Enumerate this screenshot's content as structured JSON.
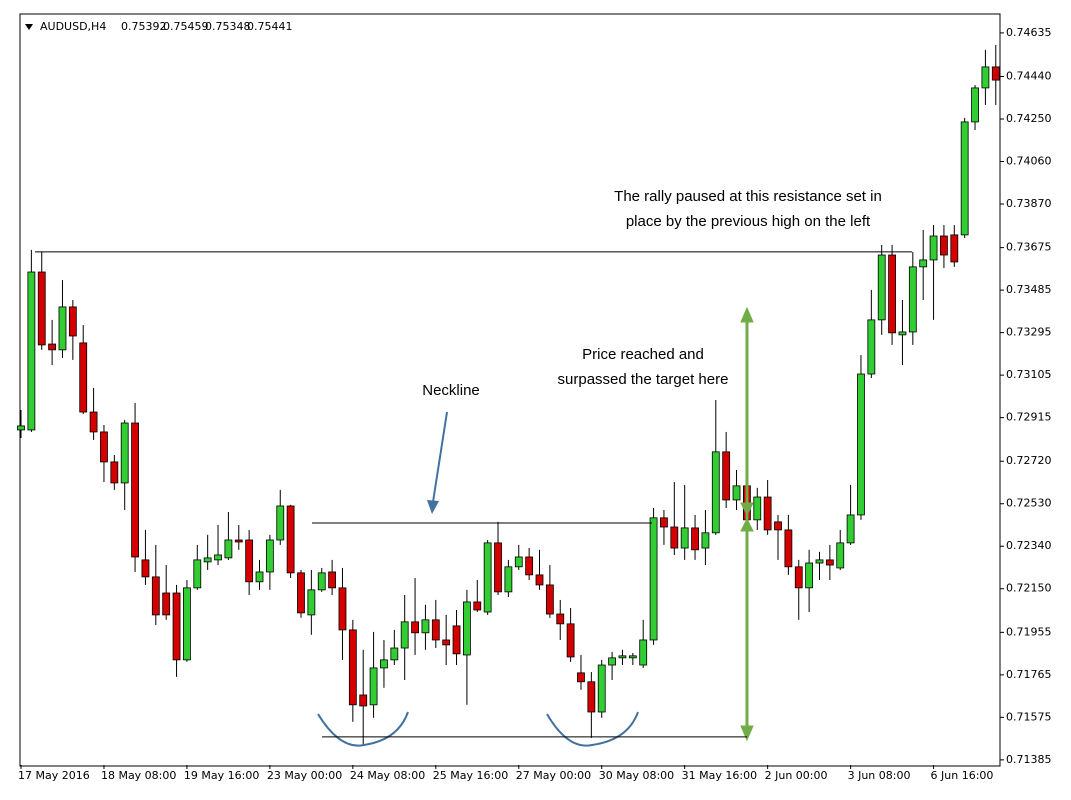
{
  "chart_data": {
    "type": "candlestick",
    "title": "AUDUSD,H4",
    "header_values": [
      0.75392,
      0.75459,
      0.75348,
      0.75441
    ],
    "categories": [
      "17 May 2016",
      null,
      null,
      null,
      null,
      null,
      null,
      null,
      "18 May 08:00",
      null,
      null,
      null,
      null,
      null,
      null,
      null,
      "19 May 16:00",
      null,
      null,
      null,
      null,
      null,
      null,
      null,
      "23 May 00:00",
      null,
      null,
      null,
      null,
      null,
      null,
      null,
      "24 May 08:00",
      null,
      null,
      null,
      null,
      null,
      null,
      null,
      "25 May 16:00",
      null,
      null,
      null,
      null,
      null,
      null,
      null,
      "27 May 00:00",
      null,
      null,
      null,
      null,
      null,
      null,
      null,
      "30 May 08:00",
      null,
      null,
      null,
      null,
      null,
      null,
      null,
      "31 May 16:00",
      null,
      null,
      null,
      null,
      null,
      null,
      null,
      "2 Jun 00:00",
      null,
      null,
      null,
      null,
      null,
      null,
      null,
      "3 Jun 08:00",
      null,
      null,
      null,
      null,
      null,
      null,
      null,
      "6 Jun 16:00",
      null,
      null,
      null,
      null,
      null,
      null
    ],
    "open": [
      0.7286,
      0.7286,
      0.73566,
      0.73244,
      0.73218,
      0.7341,
      0.73249,
      0.7294,
      0.72851,
      0.72717,
      0.72623,
      0.72891,
      0.72279,
      0.72203,
      0.72131,
      0.72131,
      0.71832,
      0.72154,
      0.7227,
      0.72279,
      0.72288,
      0.72368,
      0.72368,
      0.72181,
      0.72225,
      0.72368,
      0.7252,
      0.72221,
      0.72033,
      0.72145,
      0.72225,
      0.72154,
      0.71966,
      0.71675,
      0.71631,
      0.71796,
      0.71832,
      0.71885,
      0.72002,
      0.71953,
      0.72011,
      0.71921,
      0.71984,
      0.71854,
      0.72091,
      0.72046,
      0.72355,
      0.72136,
      0.72248,
      0.72292,
      0.72212,
      0.72167,
      0.72037,
      0.71993,
      0.71774,
      0.71734,
      0.71599,
      0.71809,
      0.71841,
      0.71841,
      0.71809,
      0.71921,
      0.72467,
      0.72426,
      0.72332,
      0.72422,
      0.72332,
      0.724,
      0.72762,
      0.72547,
      0.7261,
      0.72458,
      0.7256,
      0.72449,
      0.72413,
      0.72248,
      0.72154,
      0.72265,
      0.72279,
      0.72243,
      0.72355,
      0.7248,
      0.7311,
      0.73352,
      0.73642,
      0.73285,
      0.73298,
      0.73589,
      0.7362,
      0.73727,
      0.73732,
      0.73732,
      0.74237,
      0.74389,
      0.74483
    ],
    "high": [
      0.72949,
      0.73665,
      0.73656,
      0.73352,
      0.7353,
      0.73441,
      0.73329,
      0.73048,
      0.72882,
      0.72748,
      0.72905,
      0.72981,
      0.72413,
      0.72346,
      0.72256,
      0.72167,
      0.72189,
      0.72346,
      0.72391,
      0.72435,
      0.72493,
      0.72435,
      0.72413,
      0.72279,
      0.72391,
      0.72592,
      0.72525,
      0.72234,
      0.72234,
      0.72243,
      0.72279,
      0.72243,
      0.72011,
      0.71877,
      0.71957,
      0.71921,
      0.71966,
      0.72122,
      0.72198,
      0.72078,
      0.721,
      0.72033,
      0.72055,
      0.72145,
      0.72189,
      0.72368,
      0.72449,
      0.72279,
      0.72346,
      0.72332,
      0.72324,
      0.72256,
      0.721,
      0.72064,
      0.71854,
      0.71778,
      0.71832,
      0.71868,
      0.71877,
      0.71863,
      0.72011,
      0.72511,
      0.72502,
      0.72627,
      0.72614,
      0.7248,
      0.72502,
      0.72994,
      0.72851,
      0.72681,
      0.72717,
      0.72601,
      0.72636,
      0.7248,
      0.7248,
      0.72279,
      0.72324,
      0.72315,
      0.72346,
      0.72413,
      0.72614,
      0.73195,
      0.73486,
      0.73687,
      0.73687,
      0.73441,
      0.73656,
      0.73754,
      0.73776,
      0.73776,
      0.73776,
      0.74255,
      0.74402,
      0.74559,
      0.74581
    ],
    "low": [
      0.72824,
      0.72851,
      0.73218,
      0.7315,
      0.73182,
      0.73173,
      0.72931,
      0.72815,
      0.72627,
      0.72592,
      0.72502,
      0.72225,
      0.72167,
      0.71988,
      0.72011,
      0.71756,
      0.71823,
      0.72145,
      0.72234,
      0.72256,
      0.72279,
      0.72324,
      0.72122,
      0.72145,
      0.72145,
      0.72346,
      0.72198,
      0.7202,
      0.71944,
      0.72136,
      0.72122,
      0.71832,
      0.71555,
      0.71452,
      0.71573,
      0.71707,
      0.71809,
      0.71742,
      0.71854,
      0.71877,
      0.71885,
      0.71809,
      0.71809,
      0.71631,
      0.72046,
      0.72033,
      0.72122,
      0.72113,
      0.72234,
      0.72189,
      0.72145,
      0.7202,
      0.71921,
      0.71823,
      0.71698,
      0.71483,
      0.71573,
      0.71742,
      0.71809,
      0.71809,
      0.71796,
      0.71899,
      0.72346,
      0.72301,
      0.72279,
      0.72279,
      0.72256,
      0.72391,
      0.72511,
      0.72502,
      0.72435,
      0.72413,
      0.72391,
      0.72279,
      0.72212,
      0.72011,
      0.72046,
      0.72189,
      0.72189,
      0.72234,
      0.72346,
      0.72458,
      0.73092,
      0.73285,
      0.7324,
      0.7315,
      0.7324,
      0.73441,
      0.73352,
      0.73584,
      0.73589,
      0.73718,
      0.74201,
      0.74313,
      0.74313
    ],
    "close": [
      0.72878,
      0.73566,
      0.7324,
      0.73218,
      0.7341,
      0.7328,
      0.7294,
      0.72851,
      0.72717,
      0.72623,
      0.72891,
      0.72292,
      0.72203,
      0.72033,
      0.72033,
      0.71832,
      0.72154,
      0.72279,
      0.72288,
      0.72301,
      0.72368,
      0.72359,
      0.72181,
      0.72225,
      0.72368,
      0.7252,
      0.72221,
      0.72042,
      0.72145,
      0.72221,
      0.72154,
      0.71966,
      0.71631,
      0.71626,
      0.71796,
      0.71832,
      0.71885,
      0.72002,
      0.71953,
      0.72011,
      0.71921,
      0.71899,
      0.71859,
      0.72091,
      0.72055,
      0.72355,
      0.72136,
      0.72248,
      0.72292,
      0.72212,
      0.72167,
      0.72037,
      0.71993,
      0.71845,
      0.71734,
      0.71599,
      0.71809,
      0.71841,
      0.7185,
      0.7185,
      0.71921,
      0.72467,
      0.72426,
      0.72332,
      0.72422,
      0.72324,
      0.724,
      0.72762,
      0.72547,
      0.7261,
      0.72458,
      0.7256,
      0.72413,
      0.72413,
      0.72248,
      0.72154,
      0.72265,
      0.72279,
      0.72256,
      0.72355,
      0.7248,
      0.7311,
      0.73352,
      0.73642,
      0.73294,
      0.73298,
      0.73589,
      0.7362,
      0.73727,
      0.73642,
      0.73611,
      0.74237,
      0.74389,
      0.74483,
      0.74424
    ],
    "up_color": "#32cd32",
    "down_color": "#d40000",
    "ylim": [
      0.71362,
      0.74715
    ],
    "yticks": [
      0.74635,
      {
        "value": 0.7444,
        "label": "0.74440"
      },
      {
        "value": 0.7425,
        "label": "0.74250"
      },
      {
        "value": 0.7406,
        "label": "0.74060"
      },
      {
        "value": 0.7387,
        "label": "0.73870"
      },
      0.73675,
      0.73485,
      0.73295,
      0.73105,
      0.72915,
      {
        "value": 0.7272,
        "label": "0.72720"
      },
      {
        "value": 0.7253,
        "label": "0.72530"
      },
      {
        "value": 0.7234,
        "label": "0.72340"
      },
      {
        "value": 0.7215,
        "label": "0.72150"
      },
      0.71955,
      0.71765,
      0.71575,
      0.71385
    ],
    "grid": false,
    "levels": [
      0.73656,
      0.72444,
      0.71488
    ],
    "annotations": [
      {
        "lines": [
          "The rally paused at this resistance set in",
          "place by the previous high on the left"
        ],
        "color": "#000000"
      },
      {
        "lines": [
          "Neckline"
        ],
        "color": "#000000"
      },
      {
        "lines": [
          "Price reached and",
          "surpassed the target here"
        ],
        "color": "#70ad47"
      }
    ]
  }
}
